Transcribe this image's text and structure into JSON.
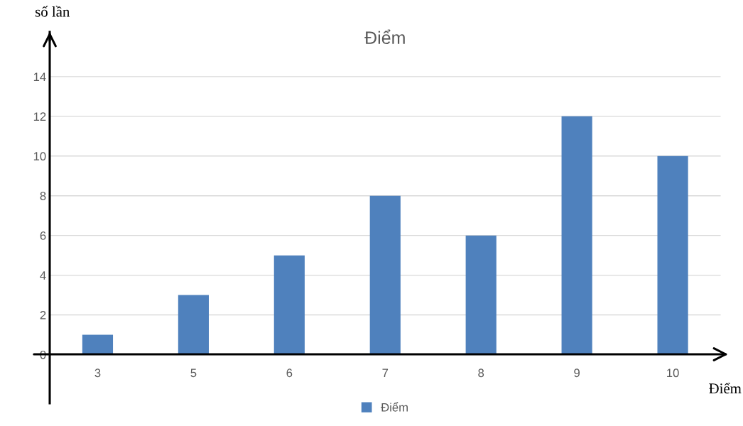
{
  "chart_data": {
    "type": "bar",
    "title": "Điểm",
    "xlabel": "Điểm",
    "ylabel": "số lần",
    "categories": [
      "3",
      "5",
      "6",
      "7",
      "8",
      "9",
      "10"
    ],
    "series": [
      {
        "name": "Điểm",
        "color": "#4f81bd",
        "values": [
          1,
          3,
          5,
          8,
          6,
          12,
          10
        ]
      }
    ],
    "ylim": [
      -2.45,
      16.25
    ],
    "yticks": [
      0,
      2,
      4,
      6,
      8,
      10,
      12,
      14
    ],
    "grid": "y",
    "legend": "bottom"
  }
}
